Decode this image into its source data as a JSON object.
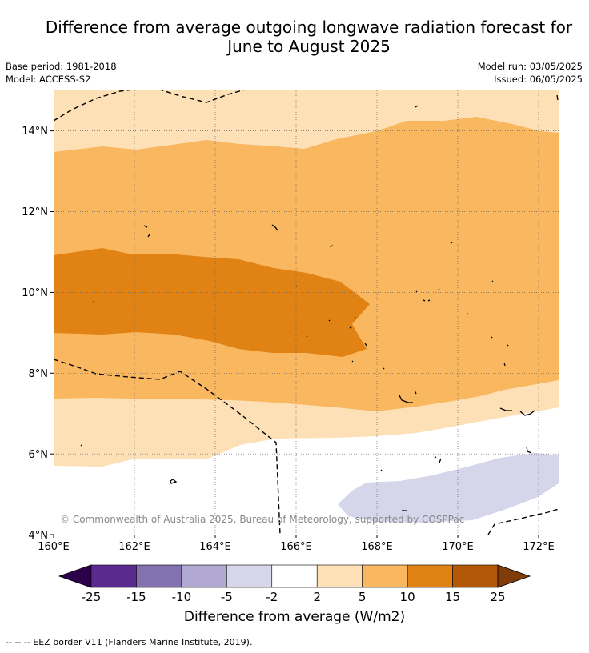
{
  "title_line1": "Difference from average outgoing longwave radiation forecast for",
  "title_line2": "June to August 2025",
  "base_period": "Base period: 1981-2018",
  "model": "Model: ACCESS-S2",
  "model_run": "Model run: 03/05/2025",
  "issued": "Issued: 06/05/2025",
  "copyright": "© Commonwealth of Australia 2025, Bureau of Meteorology, supported by COSPPac",
  "lon_labels": [
    "160°E",
    "162°E",
    "164°E",
    "166°E",
    "168°E",
    "170°E",
    "172°E"
  ],
  "lat_labels": [
    "14°N",
    "12°N",
    "10°N",
    "8°N",
    "6°N",
    "4°N"
  ],
  "colorbar": {
    "title": "Difference from average (W/m2)",
    "ticks": [
      "-25",
      "-15",
      "-10",
      "-5",
      "-2",
      "2",
      "5",
      "10",
      "15",
      "25"
    ],
    "colors": [
      "#5a2a90",
      "#8472b0",
      "#b1a9d2",
      "#d6d6ea",
      "#ffffff",
      "#fde0b6",
      "#f9b760",
      "#e08214",
      "#b35806"
    ],
    "under_color": "#2d004b",
    "over_color": "#7f3b08"
  },
  "legend_note": "--  --  -- EEZ border V11 (Flanders Marine Institute, 2019)."
}
